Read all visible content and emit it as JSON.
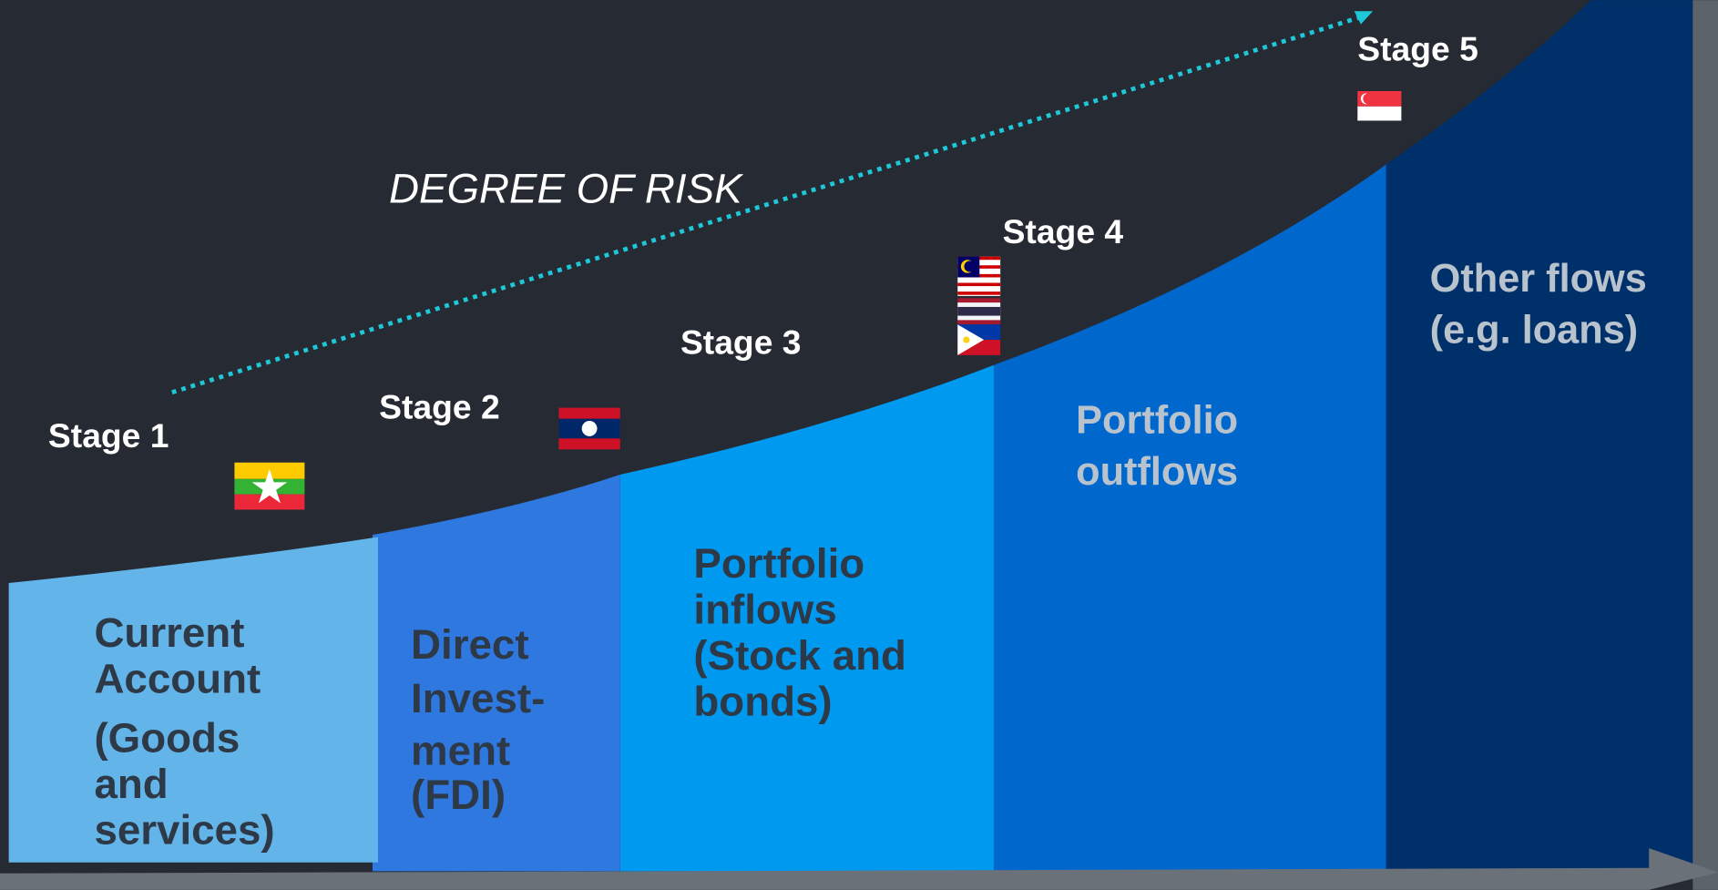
{
  "title": "DEGREE OF RISK",
  "stages": [
    "Stage 1",
    "Stage 2",
    "Stage 3",
    "Stage 4",
    "Stage 5"
  ],
  "flows": [
    [
      "Current",
      "Account",
      "(Goods",
      "and",
      "services)"
    ],
    [
      "Direct",
      "Invest-",
      "ment",
      "(FDI)"
    ],
    [
      "Portfolio",
      "inflows",
      "(Stock and",
      "bonds)"
    ],
    [
      "Portfolio",
      "outflows"
    ],
    [
      "Other flows",
      "(e.g. loans)"
    ]
  ]
}
